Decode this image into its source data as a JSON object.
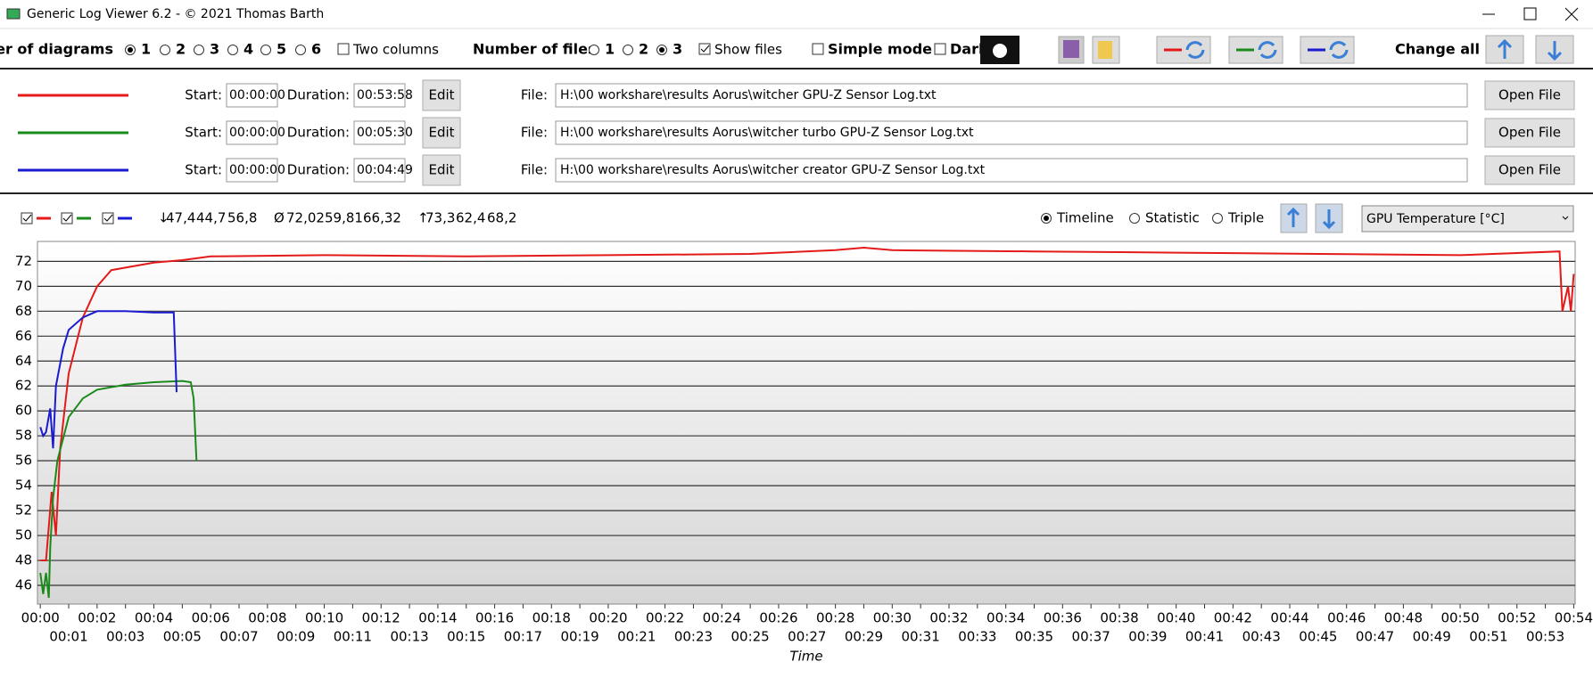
{
  "window": {
    "title": "Generic Log Viewer 6.2 - © 2021 Thomas Barth"
  },
  "toolbar": {
    "diagrams_label": "Number of diagrams",
    "diagram_options": [
      "1",
      "2",
      "3",
      "4",
      "5",
      "6"
    ],
    "two_columns": "Two columns",
    "files_label": "Number of files",
    "file_options": [
      "1",
      "2",
      "3"
    ],
    "show_files": "Show files",
    "simple_mode": "Simple mode",
    "dark": "Dark",
    "change_all": "Change all"
  },
  "files": [
    {
      "color": "#e41a1a",
      "start_label": "Start:",
      "start": "00:00:00",
      "duration_label": "Duration:",
      "duration": "00:53:58",
      "edit": "Edit",
      "file_label": "File:",
      "path": "H:\\00 workshare\\results Aorus\\witcher GPU-Z Sensor Log.txt",
      "open": "Open File"
    },
    {
      "color": "#1a8a1a",
      "start_label": "Start:",
      "start": "00:00:00",
      "duration_label": "Duration:",
      "duration": "00:05:30",
      "edit": "Edit",
      "file_label": "File:",
      "path": "H:\\00 workshare\\results Aorus\\witcher turbo GPU-Z Sensor Log.txt",
      "open": "Open File"
    },
    {
      "color": "#1a1ad0",
      "start_label": "Start:",
      "start": "00:00:00",
      "duration_label": "Duration:",
      "duration": "00:04:49",
      "edit": "Edit",
      "file_label": "File:",
      "path": "H:\\00 workshare\\results Aorus\\witcher creator GPU-Z Sensor Log.txt",
      "open": "Open File"
    }
  ],
  "stats": {
    "min_symbol": "↓",
    "min": [
      "47,4",
      "44,7",
      "56,8"
    ],
    "avg_symbol": "Ø",
    "avg": [
      "72,02",
      "59,81",
      "66,32"
    ],
    "max_symbol": "↑",
    "max": [
      "73,3",
      "62,4",
      "68,2"
    ]
  },
  "view": {
    "options": [
      "Timeline",
      "Statistic",
      "Triple"
    ],
    "sensor": "GPU Temperature [°C]"
  },
  "chart_data": {
    "type": "line",
    "x_label": "Time",
    "xlim": [
      -0.1,
      54.05
    ],
    "ylim": [
      44.5,
      73.6
    ],
    "grid": true,
    "yticks": [
      46,
      48,
      50,
      52,
      54,
      56,
      58,
      60,
      62,
      64,
      66,
      68,
      70,
      72
    ],
    "xticks": [
      {
        "value": 0,
        "label": "00:00"
      },
      {
        "value": 1,
        "label": "00:01"
      },
      {
        "value": 2,
        "label": "00:02"
      },
      {
        "value": 3,
        "label": "00:03"
      },
      {
        "value": 4,
        "label": "00:04"
      },
      {
        "value": 5,
        "label": "00:05"
      },
      {
        "value": 6,
        "label": "00:06"
      },
      {
        "value": 7,
        "label": "00:07"
      },
      {
        "value": 8,
        "label": "00:08"
      },
      {
        "value": 9,
        "label": "00:09"
      },
      {
        "value": 10,
        "label": "00:10"
      },
      {
        "value": 11,
        "label": "00:11"
      },
      {
        "value": 12,
        "label": "00:12"
      },
      {
        "value": 13,
        "label": "00:13"
      },
      {
        "value": 14,
        "label": "00:14"
      },
      {
        "value": 15,
        "label": "00:15"
      },
      {
        "value": 16,
        "label": "00:16"
      },
      {
        "value": 17,
        "label": "00:17"
      },
      {
        "value": 18,
        "label": "00:18"
      },
      {
        "value": 19,
        "label": "00:19"
      },
      {
        "value": 20,
        "label": "00:20"
      },
      {
        "value": 21,
        "label": "00:21"
      },
      {
        "value": 22,
        "label": "00:22"
      },
      {
        "value": 23,
        "label": "00:23"
      },
      {
        "value": 24,
        "label": "00:24"
      },
      {
        "value": 25,
        "label": "00:25"
      },
      {
        "value": 26,
        "label": "00:26"
      },
      {
        "value": 27,
        "label": "00:27"
      },
      {
        "value": 28,
        "label": "00:28"
      },
      {
        "value": 29,
        "label": "00:29"
      },
      {
        "value": 30,
        "label": "00:30"
      },
      {
        "value": 31,
        "label": "00:31"
      },
      {
        "value": 32,
        "label": "00:32"
      },
      {
        "value": 33,
        "label": "00:33"
      },
      {
        "value": 34,
        "label": "00:34"
      },
      {
        "value": 35,
        "label": "00:35"
      },
      {
        "value": 36,
        "label": "00:36"
      },
      {
        "value": 37,
        "label": "00:37"
      },
      {
        "value": 38,
        "label": "00:38"
      },
      {
        "value": 39,
        "label": "00:39"
      },
      {
        "value": 40,
        "label": "00:40"
      },
      {
        "value": 41,
        "label": "00:41"
      },
      {
        "value": 42,
        "label": "00:42"
      },
      {
        "value": 43,
        "label": "00:43"
      },
      {
        "value": 44,
        "label": "00:44"
      },
      {
        "value": 45,
        "label": "00:45"
      },
      {
        "value": 46,
        "label": "00:46"
      },
      {
        "value": 47,
        "label": "00:47"
      },
      {
        "value": 48,
        "label": "00:48"
      },
      {
        "value": 49,
        "label": "00:49"
      },
      {
        "value": 50,
        "label": "00:50"
      },
      {
        "value": 51,
        "label": "00:51"
      },
      {
        "value": 52,
        "label": "00:52"
      },
      {
        "value": 53,
        "label": "00:53"
      },
      {
        "value": 54,
        "label": "00:54"
      }
    ],
    "series": [
      {
        "color": "#e41a1a",
        "x": [
          0,
          0.2,
          0.4,
          0.55,
          0.7,
          1,
          1.5,
          2,
          2.5,
          3,
          4,
          5,
          6,
          10,
          15,
          20,
          25,
          28,
          29,
          30,
          35,
          40,
          45,
          50,
          53.5,
          53.6,
          53.8,
          53.9,
          54
        ],
        "values": [
          48,
          48,
          53.5,
          50,
          57,
          63,
          67.5,
          70,
          71.3,
          71.5,
          71.9,
          72.1,
          72.4,
          72.5,
          72.4,
          72.5,
          72.6,
          72.9,
          73.1,
          72.9,
          72.8,
          72.7,
          72.6,
          72.5,
          72.8,
          68,
          70,
          68,
          71
        ]
      },
      {
        "color": "#1a8a1a",
        "x": [
          0,
          0.1,
          0.2,
          0.3,
          0.35,
          0.45,
          0.6,
          1,
          1.5,
          2,
          3,
          4,
          5,
          5.3,
          5.4,
          5.5
        ],
        "values": [
          47,
          45.3,
          47,
          45,
          49,
          53,
          56,
          59.5,
          61,
          61.7,
          62.1,
          62.3,
          62.4,
          62.3,
          61,
          56
        ]
      },
      {
        "color": "#1a1ad0",
        "x": [
          0,
          0.1,
          0.2,
          0.35,
          0.45,
          0.55,
          0.8,
          1,
          1.5,
          2,
          3,
          4,
          4.7,
          4.8
        ],
        "values": [
          58.7,
          58,
          58.3,
          60.2,
          57,
          62,
          65,
          66.5,
          67.5,
          68,
          68,
          67.9,
          67.9,
          61.5
        ]
      }
    ]
  }
}
